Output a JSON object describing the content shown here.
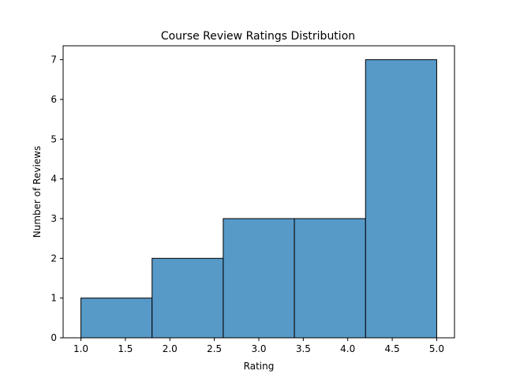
{
  "chart_data": {
    "type": "bar",
    "title": "Course Review Ratings Distribution",
    "xlabel": "Rating",
    "ylabel": "Number of Reviews",
    "bins": [
      {
        "x_start": 1.0,
        "x_end": 1.8,
        "count": 1
      },
      {
        "x_start": 1.8,
        "x_end": 2.6,
        "count": 2
      },
      {
        "x_start": 2.6,
        "x_end": 3.4,
        "count": 3
      },
      {
        "x_start": 3.4,
        "x_end": 4.2,
        "count": 3
      },
      {
        "x_start": 4.2,
        "x_end": 5.0,
        "count": 7
      }
    ],
    "xlim": [
      0.8,
      5.2
    ],
    "ylim": [
      0,
      7.35
    ],
    "x_ticks": [
      "1.0",
      "1.5",
      "2.0",
      "2.5",
      "3.0",
      "3.5",
      "4.0",
      "4.5",
      "5.0"
    ],
    "y_ticks": [
      "0",
      "1",
      "2",
      "3",
      "4",
      "5",
      "6",
      "7"
    ],
    "grid": false,
    "bar_color": "#5799c7",
    "edge_color": "#000000"
  }
}
